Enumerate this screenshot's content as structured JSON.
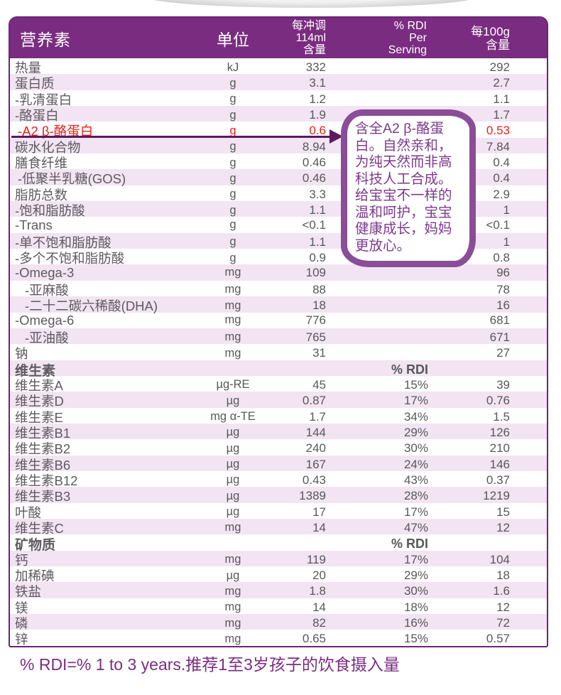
{
  "colors": {
    "header_bg": "#7a2d80",
    "header_text": "#ffffff",
    "row_alt": "#f2e4f3",
    "table_border": "#6e2375",
    "label_text": "#5f5a61",
    "value_text": "#58585a",
    "highlight_red": "#e8211a",
    "callout_border": "#8a4d97",
    "callout_text": "#7c3a8c",
    "arrow": "#5c1a5e",
    "footnote_text": "#7b2d80"
  },
  "table": {
    "header": {
      "nutrient": "营养素",
      "unit": "单位",
      "serving_lines": [
        "每冲调",
        "114ml",
        "含量"
      ],
      "rdi_lines": [
        "% RDI",
        "Per",
        "Serving"
      ],
      "per100g_lines": [
        "每100g",
        "含量"
      ]
    },
    "rows": [
      {
        "label": "热量",
        "unit": "kJ",
        "serving": "332",
        "rdi": "",
        "per100g": "292",
        "type": "main",
        "indent": 0
      },
      {
        "label": "蛋白质",
        "unit": "g",
        "serving": "3.1",
        "rdi": "",
        "per100g": "2.7",
        "type": "main",
        "indent": 0
      },
      {
        "label": "-乳清蛋白",
        "unit": "g",
        "serving": "1.2",
        "rdi": "",
        "per100g": "1.1",
        "type": "sub",
        "indent": 0
      },
      {
        "label": "-酪蛋白",
        "unit": "g",
        "serving": "1.9",
        "rdi": "",
        "per100g": "1.7",
        "type": "sub",
        "indent": 0
      },
      {
        "label": "-A2 β-酪蛋白",
        "unit": "g",
        "serving": "0.6",
        "rdi": "",
        "per100g": "0.53",
        "type": "red",
        "indent": 1
      },
      {
        "label": "碳水化合物",
        "unit": "g",
        "serving": "8.94",
        "rdi": "",
        "per100g": "7.84",
        "type": "main",
        "indent": 0
      },
      {
        "label": "膳食纤维",
        "unit": "g",
        "serving": "0.46",
        "rdi": "",
        "per100g": "0.4",
        "type": "main",
        "indent": 0
      },
      {
        "label": "-低聚半乳糖(GOS)",
        "unit": "g",
        "serving": "0.46",
        "rdi": "",
        "per100g": "0.4",
        "type": "sub",
        "indent": 1
      },
      {
        "label": "脂肪总数",
        "unit": "g",
        "serving": "3.3",
        "rdi": "",
        "per100g": "2.9",
        "type": "main",
        "indent": 0
      },
      {
        "label": "-饱和脂肪酸",
        "unit": "g",
        "serving": "1.1",
        "rdi": "",
        "per100g": "1",
        "type": "sub",
        "indent": 0
      },
      {
        "label": "-Trans",
        "unit": "g",
        "serving": "<0.1",
        "rdi": "",
        "per100g": "<0.1",
        "type": "sub",
        "indent": 0
      },
      {
        "label": "-单不饱和脂肪酸",
        "unit": "g",
        "serving": "1.1",
        "rdi": "",
        "per100g": "1",
        "type": "sub",
        "indent": 0
      },
      {
        "label": "-多个不饱和脂肪酸",
        "unit": "g",
        "serving": "0.9",
        "rdi": "",
        "per100g": "0.8",
        "type": "sub",
        "indent": 0
      },
      {
        "label": "-Omega-3",
        "unit": "mg",
        "serving": "109",
        "rdi": "",
        "per100g": "96",
        "type": "sub",
        "indent": 0
      },
      {
        "label": "-亚麻酸",
        "unit": "mg",
        "serving": "88",
        "rdi": "",
        "per100g": "78",
        "type": "sub",
        "indent": 2
      },
      {
        "label": "-二十二碳六稀酸(DHA)",
        "unit": "mg",
        "serving": "18",
        "rdi": "",
        "per100g": "16",
        "type": "sub",
        "indent": 2
      },
      {
        "label": "-Omega-6",
        "unit": "mg",
        "serving": "776",
        "rdi": "",
        "per100g": "681",
        "type": "sub",
        "indent": 0
      },
      {
        "label": "-亚油酸",
        "unit": "mg",
        "serving": "765",
        "rdi": "",
        "per100g": "671",
        "type": "sub",
        "indent": 2
      },
      {
        "label": "钠",
        "unit": "mg",
        "serving": "31",
        "rdi": "",
        "per100g": "27",
        "type": "main",
        "indent": 0
      },
      {
        "label": "维生素",
        "unit": "",
        "serving": "",
        "rdi": "% RDI",
        "per100g": "",
        "type": "section",
        "indent": 0
      },
      {
        "label": "维生素A",
        "unit": "µg-RE",
        "serving": "45",
        "rdi": "15%",
        "per100g": "39",
        "type": "main",
        "indent": 0
      },
      {
        "label": "维生素D",
        "unit": "µg",
        "serving": "0.87",
        "rdi": "17%",
        "per100g": "0.76",
        "type": "main",
        "indent": 0
      },
      {
        "label": "维生素E",
        "unit": "mg α-TE",
        "serving": "1.7",
        "rdi": "34%",
        "per100g": "1.5",
        "type": "main",
        "indent": 0
      },
      {
        "label": "维生素B1",
        "unit": "µg",
        "serving": "144",
        "rdi": "29%",
        "per100g": "126",
        "type": "main",
        "indent": 0
      },
      {
        "label": "维生素B2",
        "unit": "µg",
        "serving": "240",
        "rdi": "30%",
        "per100g": "210",
        "type": "main",
        "indent": 0
      },
      {
        "label": "维生素B6",
        "unit": "µg",
        "serving": "167",
        "rdi": "24%",
        "per100g": "146",
        "type": "main",
        "indent": 0
      },
      {
        "label": "维生素B12",
        "unit": "µg",
        "serving": "0.43",
        "rdi": "43%",
        "per100g": "0.37",
        "type": "main",
        "indent": 0
      },
      {
        "label": "维生素B3",
        "unit": "µg",
        "serving": "1389",
        "rdi": "28%",
        "per100g": "1219",
        "type": "main",
        "indent": 0
      },
      {
        "label": "叶酸",
        "unit": "µg",
        "serving": "17",
        "rdi": "17%",
        "per100g": "15",
        "type": "main",
        "indent": 0
      },
      {
        "label": "维生素C",
        "unit": "mg",
        "serving": "14",
        "rdi": "47%",
        "per100g": "12",
        "type": "main",
        "indent": 0
      },
      {
        "label": "矿物质",
        "unit": "",
        "serving": "",
        "rdi": "% RDI",
        "per100g": "",
        "type": "section",
        "indent": 0
      },
      {
        "label": "钙",
        "unit": "mg",
        "serving": "119",
        "rdi": "17%",
        "per100g": "104",
        "type": "main",
        "indent": 0
      },
      {
        "label": "加稀碘",
        "unit": "µg",
        "serving": "20",
        "rdi": "29%",
        "per100g": "18",
        "type": "main",
        "indent": 0
      },
      {
        "label": "铁盐",
        "unit": "mg",
        "serving": "1.8",
        "rdi": "30%",
        "per100g": "1.6",
        "type": "main",
        "indent": 0
      },
      {
        "label": "镁",
        "unit": "mg",
        "serving": "14",
        "rdi": "18%",
        "per100g": "12",
        "type": "main",
        "indent": 0
      },
      {
        "label": "磷",
        "unit": "mg",
        "serving": "82",
        "rdi": "16%",
        "per100g": "72",
        "type": "main",
        "indent": 0
      },
      {
        "label": "锌",
        "unit": "mg",
        "serving": "0.65",
        "rdi": "15%",
        "per100g": "0.57",
        "type": "main",
        "indent": 0
      }
    ]
  },
  "callout": {
    "text": "含全A2 β-酪蛋白。自然亲和，为纯天然而非高科技人工合成。给宝宝不一样的温和呵护，宝宝健康成长，妈妈更放心。"
  },
  "footer": {
    "text": "% RDI=% 1 to 3 years.推荐1至3岁孩子的饮食摄入量"
  }
}
